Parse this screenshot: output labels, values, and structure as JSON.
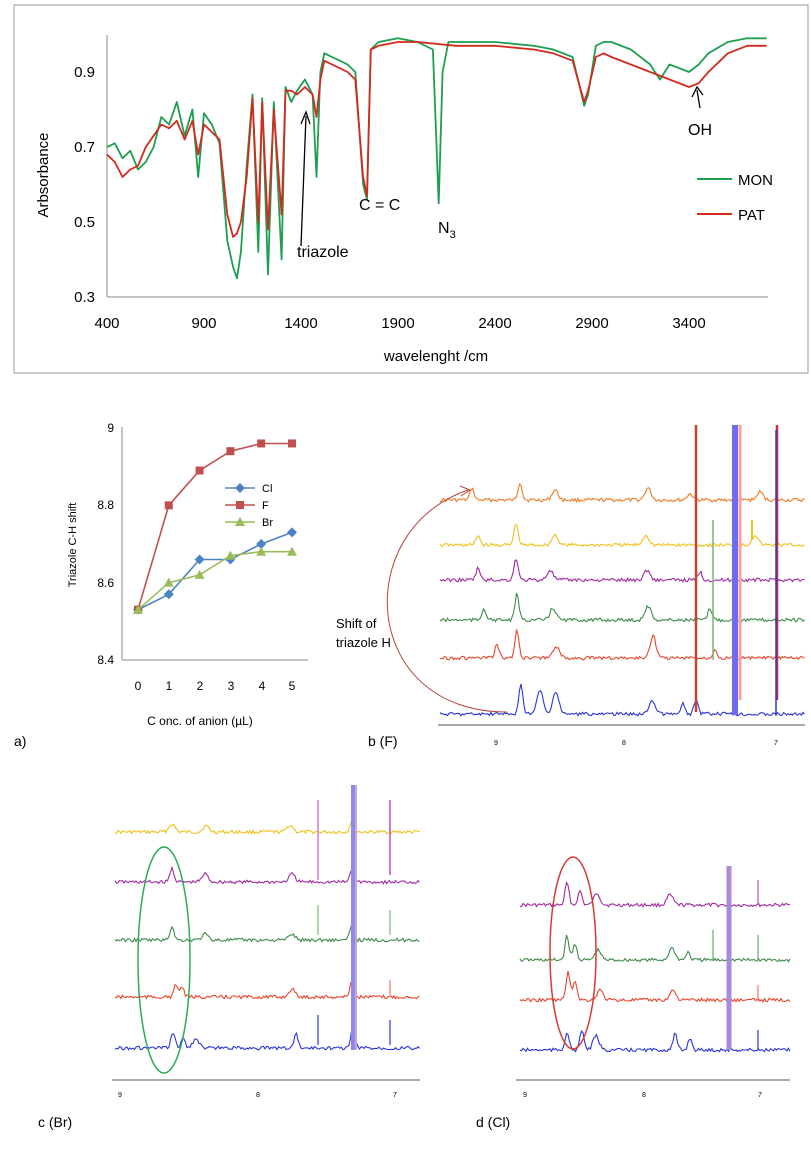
{
  "ir": {
    "xlabel": "wavelenght /cm",
    "ylabel": "Arbsorbance",
    "x_ticks": [
      "400",
      "900",
      "1400",
      "1900",
      "2400",
      "2900",
      "3400"
    ],
    "y_ticks": [
      "0.3",
      "0.5",
      "0.7",
      "0.9"
    ],
    "legend": [
      "MON",
      "PAT"
    ],
    "annotations": {
      "triazole": "triazole",
      "cc": "C = C",
      "n3_main": "N",
      "n3_sub": "3",
      "oh": "OH"
    },
    "colors": {
      "MON": "#1e9e50",
      "PAT": "#d42a1e"
    }
  },
  "panels": {
    "a_label": "a)",
    "b_label": "b (F)",
    "c_label": "c (Br)",
    "d_label": "d (Cl)",
    "shift_note": [
      "Shift of",
      "triazole H"
    ],
    "ppm_ticks": [
      "9",
      "8",
      "7"
    ]
  },
  "chart_data": [
    {
      "type": "line",
      "title": "",
      "xlabel": "wavelenght /cm",
      "ylabel": "Arbsorbance",
      "xlim": [
        400,
        3800
      ],
      "ylim": [
        0.3,
        1.0
      ],
      "grid": false,
      "legend_position": "right",
      "series": [
        {
          "name": "MON",
          "color": "#1e9e50",
          "x": [
            400,
            440,
            480,
            520,
            560,
            600,
            640,
            680,
            720,
            760,
            800,
            840,
            870,
            900,
            940,
            980,
            1020,
            1050,
            1070,
            1090,
            1120,
            1150,
            1180,
            1200,
            1230,
            1260,
            1300,
            1320,
            1350,
            1380,
            1420,
            1460,
            1480,
            1500,
            1520,
            1560,
            1600,
            1640,
            1680,
            1720,
            1740,
            1760,
            1800,
            1900,
            2000,
            2080,
            2110,
            2130,
            2160,
            2200,
            2400,
            2600,
            2700,
            2800,
            2860,
            2880,
            2920,
            2960,
            3000,
            3100,
            3200,
            3250,
            3300,
            3350,
            3400,
            3450,
            3500,
            3600,
            3700,
            3800
          ],
          "y": [
            0.7,
            0.71,
            0.67,
            0.69,
            0.64,
            0.66,
            0.7,
            0.78,
            0.76,
            0.82,
            0.73,
            0.8,
            0.62,
            0.79,
            0.76,
            0.71,
            0.45,
            0.38,
            0.35,
            0.42,
            0.65,
            0.84,
            0.42,
            0.83,
            0.36,
            0.82,
            0.4,
            0.86,
            0.82,
            0.85,
            0.88,
            0.84,
            0.62,
            0.9,
            0.95,
            0.94,
            0.93,
            0.92,
            0.9,
            0.6,
            0.56,
            0.96,
            0.98,
            0.99,
            0.98,
            0.96,
            0.55,
            0.9,
            0.98,
            0.98,
            0.98,
            0.97,
            0.96,
            0.94,
            0.81,
            0.84,
            0.97,
            0.98,
            0.98,
            0.96,
            0.92,
            0.88,
            0.92,
            0.91,
            0.9,
            0.92,
            0.95,
            0.98,
            0.99,
            0.99
          ]
        },
        {
          "name": "PAT",
          "color": "#d42a1e",
          "x": [
            400,
            440,
            480,
            520,
            560,
            600,
            640,
            680,
            720,
            760,
            800,
            840,
            870,
            900,
            940,
            980,
            1020,
            1050,
            1070,
            1090,
            1120,
            1150,
            1180,
            1200,
            1230,
            1260,
            1300,
            1320,
            1350,
            1380,
            1420,
            1460,
            1480,
            1500,
            1520,
            1560,
            1600,
            1640,
            1680,
            1720,
            1740,
            1760,
            1800,
            1900,
            2000,
            2200,
            2400,
            2600,
            2700,
            2800,
            2860,
            2880,
            2920,
            2960,
            3000,
            3100,
            3200,
            3300,
            3400,
            3450,
            3500,
            3600,
            3700,
            3800
          ],
          "y": [
            0.68,
            0.66,
            0.62,
            0.64,
            0.65,
            0.7,
            0.73,
            0.76,
            0.75,
            0.77,
            0.72,
            0.77,
            0.68,
            0.76,
            0.74,
            0.72,
            0.52,
            0.46,
            0.47,
            0.5,
            0.62,
            0.83,
            0.5,
            0.82,
            0.48,
            0.8,
            0.52,
            0.85,
            0.85,
            0.84,
            0.86,
            0.84,
            0.78,
            0.88,
            0.93,
            0.92,
            0.91,
            0.9,
            0.88,
            0.62,
            0.57,
            0.96,
            0.97,
            0.98,
            0.98,
            0.97,
            0.97,
            0.96,
            0.95,
            0.93,
            0.82,
            0.85,
            0.94,
            0.95,
            0.94,
            0.92,
            0.9,
            0.88,
            0.86,
            0.87,
            0.9,
            0.95,
            0.97,
            0.97
          ]
        }
      ]
    },
    {
      "type": "line",
      "title": "",
      "xlabel": "C onc. of anion (µL)",
      "ylabel": "Triazole C-H shift",
      "xlim": [
        -0.5,
        5.5
      ],
      "ylim": [
        8.4,
        9.0
      ],
      "x_ticks": [
        "0",
        "1",
        "2",
        "3",
        "4",
        "5"
      ],
      "y_ticks": [
        "8.4",
        "8.6",
        "8.8",
        "9"
      ],
      "grid": false,
      "legend_position": "top-right",
      "categories": [
        0,
        1,
        2,
        3,
        4,
        5
      ],
      "series": [
        {
          "name": "Cl",
          "color": "#4a82c4",
          "marker": "diamond",
          "values": [
            8.53,
            8.57,
            8.66,
            8.66,
            8.7,
            8.73
          ]
        },
        {
          "name": "F",
          "color": "#c0504d",
          "marker": "square",
          "values": [
            8.53,
            8.8,
            8.89,
            8.94,
            8.96,
            8.96
          ]
        },
        {
          "name": "Br",
          "color": "#9bbb59",
          "marker": "triangle",
          "values": [
            8.53,
            8.6,
            8.62,
            8.67,
            8.68,
            8.68
          ]
        }
      ]
    }
  ]
}
